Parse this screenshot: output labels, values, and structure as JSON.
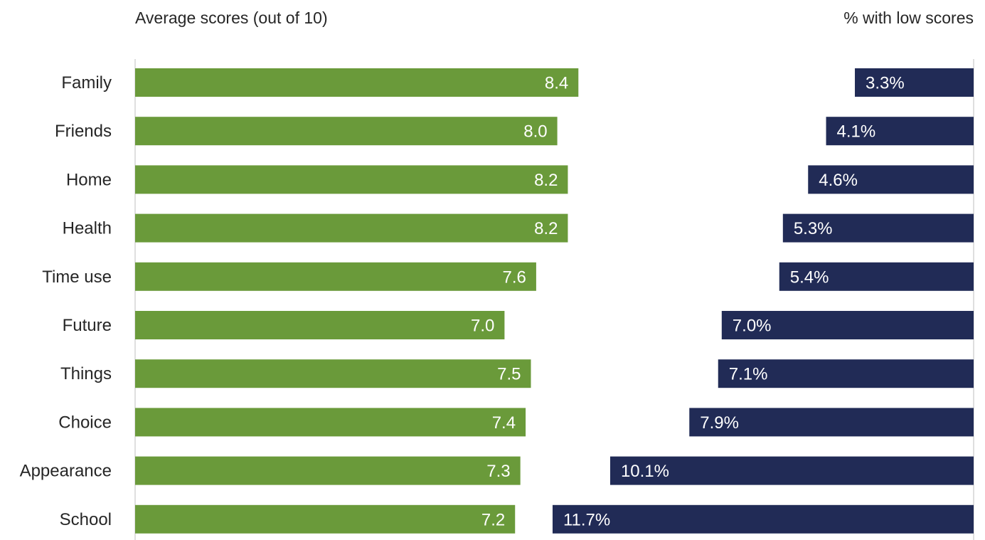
{
  "chart_data": [
    {
      "type": "bar",
      "orientation": "horizontal",
      "title": "Average scores (out of 10)",
      "categories": [
        "Family",
        "Friends",
        "Home",
        "Health",
        "Time use",
        "Future",
        "Things",
        "Choice",
        "Appearance",
        "School"
      ],
      "values": [
        8.4,
        8.0,
        8.2,
        8.2,
        7.6,
        7.0,
        7.5,
        7.4,
        7.3,
        7.2
      ],
      "value_labels": [
        "8.4",
        "8.0",
        "8.2",
        "8.2",
        "7.6",
        "7.0",
        "7.5",
        "7.4",
        "7.3",
        "7.2"
      ],
      "xlim": [
        0,
        10
      ],
      "color": "#6a9a3a"
    },
    {
      "type": "bar",
      "orientation": "horizontal",
      "direction": "right-to-left",
      "title": "% with low scores",
      "categories": [
        "Family",
        "Friends",
        "Home",
        "Health",
        "Time use",
        "Future",
        "Things",
        "Choice",
        "Appearance",
        "School"
      ],
      "values": [
        3.3,
        4.1,
        4.6,
        5.3,
        5.4,
        7.0,
        7.1,
        7.9,
        10.1,
        11.7
      ],
      "value_labels": [
        "3.3%",
        "4.1%",
        "4.6%",
        "5.3%",
        "5.4%",
        "7.0%",
        "7.1%",
        "7.9%",
        "10.1%",
        "11.7%"
      ],
      "color": "#212b56"
    }
  ]
}
